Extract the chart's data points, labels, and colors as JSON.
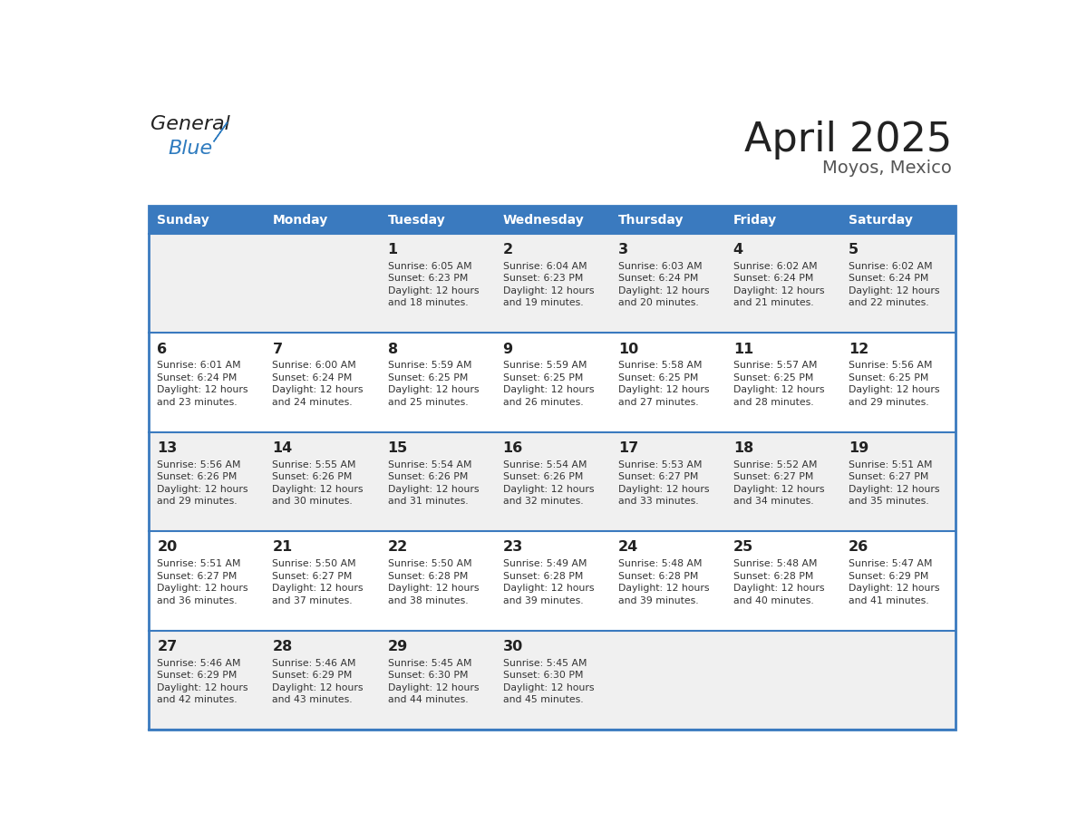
{
  "title": "April 2025",
  "subtitle": "Moyos, Mexico",
  "days_of_week": [
    "Sunday",
    "Monday",
    "Tuesday",
    "Wednesday",
    "Thursday",
    "Friday",
    "Saturday"
  ],
  "header_bg": "#3a7abf",
  "header_text": "#ffffff",
  "row_bg_odd": "#f0f0f0",
  "row_bg_even": "#ffffff",
  "cell_text_color": "#333333",
  "day_num_color": "#222222",
  "border_color": "#3a7abf",
  "row_line_color": "#3a7abf",
  "title_color": "#222222",
  "subtitle_color": "#555555",
  "calendar": [
    [
      {
        "day": 0,
        "sunrise": "",
        "sunset": "",
        "daylight": ""
      },
      {
        "day": 0,
        "sunrise": "",
        "sunset": "",
        "daylight": ""
      },
      {
        "day": 1,
        "sunrise": "6:05 AM",
        "sunset": "6:23 PM",
        "daylight": "12 hours\nand 18 minutes."
      },
      {
        "day": 2,
        "sunrise": "6:04 AM",
        "sunset": "6:23 PM",
        "daylight": "12 hours\nand 19 minutes."
      },
      {
        "day": 3,
        "sunrise": "6:03 AM",
        "sunset": "6:24 PM",
        "daylight": "12 hours\nand 20 minutes."
      },
      {
        "day": 4,
        "sunrise": "6:02 AM",
        "sunset": "6:24 PM",
        "daylight": "12 hours\nand 21 minutes."
      },
      {
        "day": 5,
        "sunrise": "6:02 AM",
        "sunset": "6:24 PM",
        "daylight": "12 hours\nand 22 minutes."
      }
    ],
    [
      {
        "day": 6,
        "sunrise": "6:01 AM",
        "sunset": "6:24 PM",
        "daylight": "12 hours\nand 23 minutes."
      },
      {
        "day": 7,
        "sunrise": "6:00 AM",
        "sunset": "6:24 PM",
        "daylight": "12 hours\nand 24 minutes."
      },
      {
        "day": 8,
        "sunrise": "5:59 AM",
        "sunset": "6:25 PM",
        "daylight": "12 hours\nand 25 minutes."
      },
      {
        "day": 9,
        "sunrise": "5:59 AM",
        "sunset": "6:25 PM",
        "daylight": "12 hours\nand 26 minutes."
      },
      {
        "day": 10,
        "sunrise": "5:58 AM",
        "sunset": "6:25 PM",
        "daylight": "12 hours\nand 27 minutes."
      },
      {
        "day": 11,
        "sunrise": "5:57 AM",
        "sunset": "6:25 PM",
        "daylight": "12 hours\nand 28 minutes."
      },
      {
        "day": 12,
        "sunrise": "5:56 AM",
        "sunset": "6:25 PM",
        "daylight": "12 hours\nand 29 minutes."
      }
    ],
    [
      {
        "day": 13,
        "sunrise": "5:56 AM",
        "sunset": "6:26 PM",
        "daylight": "12 hours\nand 29 minutes."
      },
      {
        "day": 14,
        "sunrise": "5:55 AM",
        "sunset": "6:26 PM",
        "daylight": "12 hours\nand 30 minutes."
      },
      {
        "day": 15,
        "sunrise": "5:54 AM",
        "sunset": "6:26 PM",
        "daylight": "12 hours\nand 31 minutes."
      },
      {
        "day": 16,
        "sunrise": "5:54 AM",
        "sunset": "6:26 PM",
        "daylight": "12 hours\nand 32 minutes."
      },
      {
        "day": 17,
        "sunrise": "5:53 AM",
        "sunset": "6:27 PM",
        "daylight": "12 hours\nand 33 minutes."
      },
      {
        "day": 18,
        "sunrise": "5:52 AM",
        "sunset": "6:27 PM",
        "daylight": "12 hours\nand 34 minutes."
      },
      {
        "day": 19,
        "sunrise": "5:51 AM",
        "sunset": "6:27 PM",
        "daylight": "12 hours\nand 35 minutes."
      }
    ],
    [
      {
        "day": 20,
        "sunrise": "5:51 AM",
        "sunset": "6:27 PM",
        "daylight": "12 hours\nand 36 minutes."
      },
      {
        "day": 21,
        "sunrise": "5:50 AM",
        "sunset": "6:27 PM",
        "daylight": "12 hours\nand 37 minutes."
      },
      {
        "day": 22,
        "sunrise": "5:50 AM",
        "sunset": "6:28 PM",
        "daylight": "12 hours\nand 38 minutes."
      },
      {
        "day": 23,
        "sunrise": "5:49 AM",
        "sunset": "6:28 PM",
        "daylight": "12 hours\nand 39 minutes."
      },
      {
        "day": 24,
        "sunrise": "5:48 AM",
        "sunset": "6:28 PM",
        "daylight": "12 hours\nand 39 minutes."
      },
      {
        "day": 25,
        "sunrise": "5:48 AM",
        "sunset": "6:28 PM",
        "daylight": "12 hours\nand 40 minutes."
      },
      {
        "day": 26,
        "sunrise": "5:47 AM",
        "sunset": "6:29 PM",
        "daylight": "12 hours\nand 41 minutes."
      }
    ],
    [
      {
        "day": 27,
        "sunrise": "5:46 AM",
        "sunset": "6:29 PM",
        "daylight": "12 hours\nand 42 minutes."
      },
      {
        "day": 28,
        "sunrise": "5:46 AM",
        "sunset": "6:29 PM",
        "daylight": "12 hours\nand 43 minutes."
      },
      {
        "day": 29,
        "sunrise": "5:45 AM",
        "sunset": "6:30 PM",
        "daylight": "12 hours\nand 44 minutes."
      },
      {
        "day": 30,
        "sunrise": "5:45 AM",
        "sunset": "6:30 PM",
        "daylight": "12 hours\nand 45 minutes."
      },
      {
        "day": 0,
        "sunrise": "",
        "sunset": "",
        "daylight": ""
      },
      {
        "day": 0,
        "sunrise": "",
        "sunset": "",
        "daylight": ""
      },
      {
        "day": 0,
        "sunrise": "",
        "sunset": "",
        "daylight": ""
      }
    ]
  ]
}
